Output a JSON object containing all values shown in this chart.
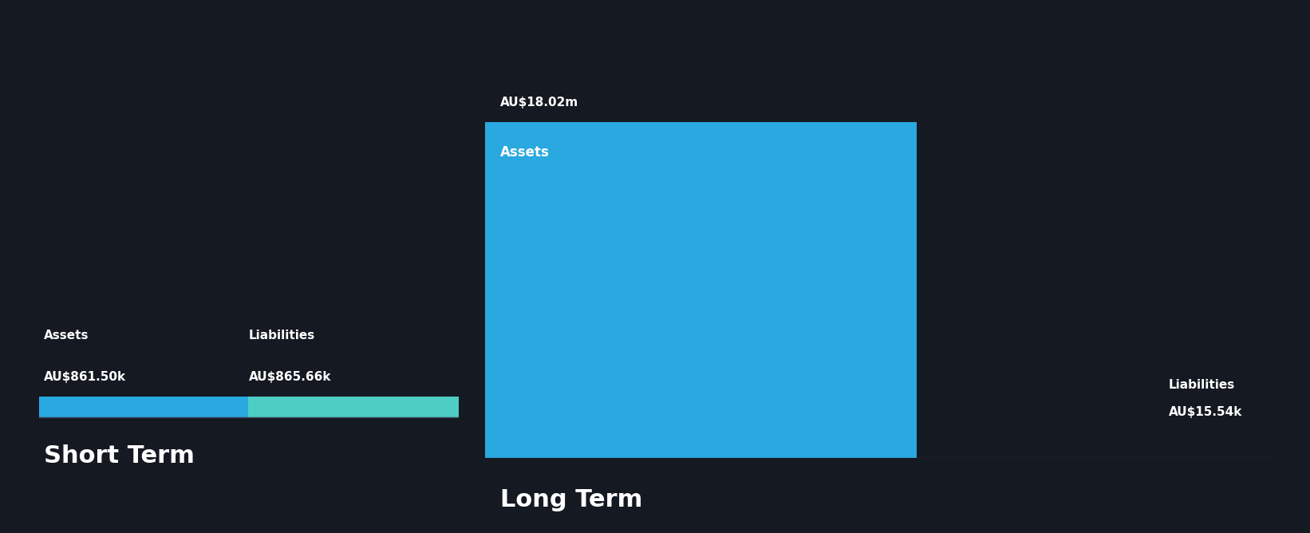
{
  "background_color": "#141922",
  "short_term": {
    "assets_label": "Assets",
    "assets_value_label": "AU$861.50k",
    "assets_value": 861500,
    "liabilities_label": "Liabilities",
    "liabilities_value_label": "AU$865.66k",
    "liabilities_value": 865660,
    "assets_color": "#2aa8e0",
    "liabilities_color": "#4ecdc4",
    "title": "Short Term"
  },
  "long_term": {
    "assets_label": "Assets",
    "assets_value_label": "AU$18.02m",
    "assets_value": 18020000,
    "liabilities_label": "Liabilities",
    "liabilities_value_label": "AU$15.54k",
    "liabilities_value": 15540,
    "assets_color": "#2aa8e0",
    "liabilities_color": "#4ecdc4",
    "title": "Long Term"
  },
  "text_color": "#ffffff",
  "label_fontsize": 11,
  "value_fontsize": 11,
  "title_fontsize": 22,
  "bar_label_fontsize": 12,
  "annotation_fontsize": 11,
  "divider_color": "#3a4050"
}
